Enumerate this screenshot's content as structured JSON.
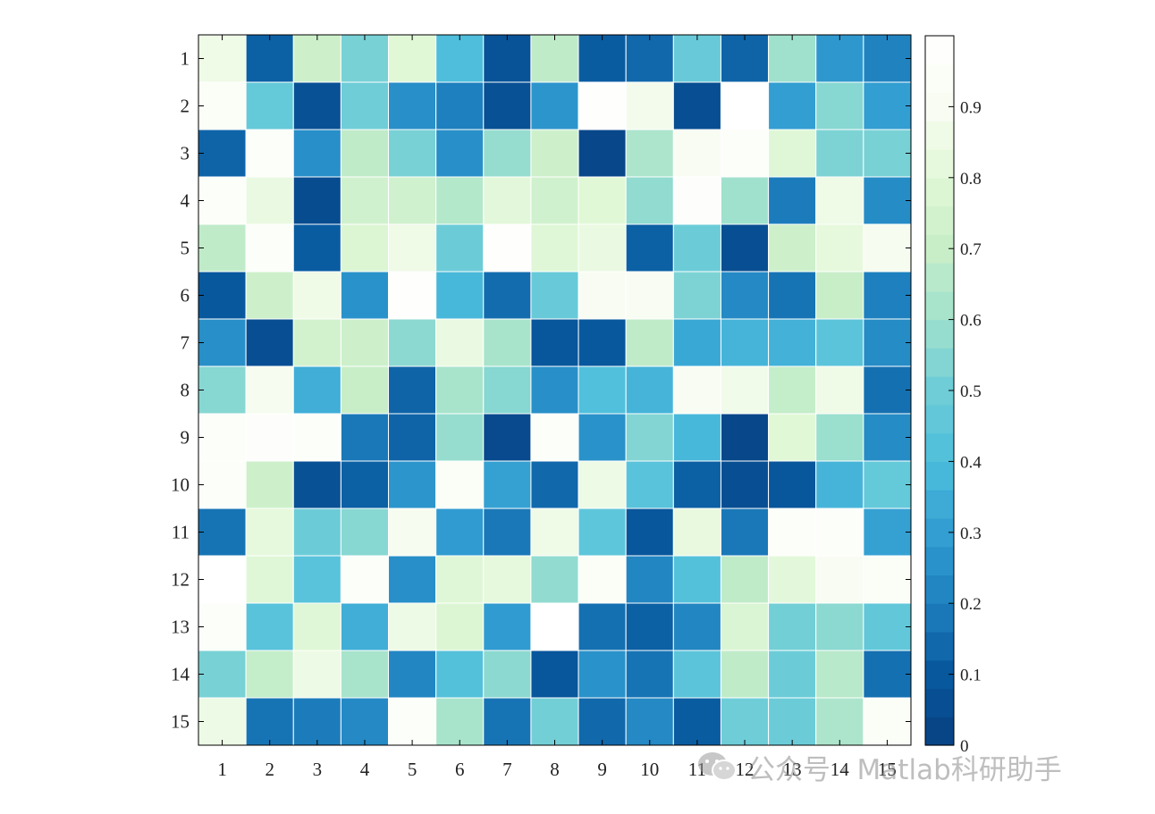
{
  "chart_data": {
    "type": "heatmap",
    "rows": [
      "1",
      "2",
      "3",
      "4",
      "5",
      "6",
      "7",
      "8",
      "9",
      "10",
      "11",
      "12",
      "13",
      "14",
      "15"
    ],
    "columns": [
      "1",
      "2",
      "3",
      "4",
      "5",
      "6",
      "7",
      "8",
      "9",
      "10",
      "11",
      "12",
      "13",
      "14",
      "15"
    ],
    "values": [
      [
        0.86,
        0.12,
        0.72,
        0.52,
        0.8,
        0.4,
        0.08,
        0.68,
        0.11,
        0.14,
        0.48,
        0.13,
        0.6,
        0.28,
        0.21
      ],
      [
        0.94,
        0.47,
        0.07,
        0.5,
        0.25,
        0.2,
        0.07,
        0.27,
        0.98,
        0.88,
        0.06,
        0.99,
        0.3,
        0.55,
        0.3
      ],
      [
        0.13,
        0.96,
        0.25,
        0.68,
        0.52,
        0.25,
        0.58,
        0.72,
        0.03,
        0.63,
        0.91,
        0.95,
        0.79,
        0.53,
        0.52
      ],
      [
        0.95,
        0.84,
        0.05,
        0.73,
        0.73,
        0.65,
        0.81,
        0.73,
        0.8,
        0.57,
        0.97,
        0.6,
        0.19,
        0.86,
        0.24
      ],
      [
        0.68,
        0.96,
        0.11,
        0.78,
        0.86,
        0.49,
        0.98,
        0.79,
        0.84,
        0.12,
        0.49,
        0.06,
        0.72,
        0.82,
        0.89
      ],
      [
        0.1,
        0.72,
        0.86,
        0.26,
        0.98,
        0.38,
        0.15,
        0.48,
        0.91,
        0.9,
        0.53,
        0.23,
        0.17,
        0.7,
        0.2
      ],
      [
        0.25,
        0.06,
        0.74,
        0.72,
        0.56,
        0.84,
        0.62,
        0.09,
        0.1,
        0.68,
        0.33,
        0.37,
        0.36,
        0.44,
        0.24
      ],
      [
        0.55,
        0.89,
        0.35,
        0.7,
        0.13,
        0.62,
        0.55,
        0.25,
        0.41,
        0.37,
        0.91,
        0.87,
        0.69,
        0.86,
        0.16
      ],
      [
        0.96,
        0.97,
        0.96,
        0.18,
        0.13,
        0.58,
        0.04,
        0.95,
        0.26,
        0.54,
        0.38,
        0.03,
        0.8,
        0.59,
        0.24
      ],
      [
        0.95,
        0.72,
        0.07,
        0.12,
        0.27,
        0.94,
        0.31,
        0.14,
        0.85,
        0.43,
        0.12,
        0.06,
        0.09,
        0.37,
        0.47
      ],
      [
        0.17,
        0.82,
        0.49,
        0.55,
        0.89,
        0.29,
        0.18,
        0.86,
        0.45,
        0.09,
        0.83,
        0.18,
        0.95,
        0.96,
        0.31
      ],
      [
        0.99,
        0.79,
        0.43,
        0.95,
        0.25,
        0.79,
        0.82,
        0.57,
        0.94,
        0.22,
        0.42,
        0.68,
        0.81,
        0.9,
        0.94
      ],
      [
        0.96,
        0.43,
        0.79,
        0.35,
        0.85,
        0.78,
        0.29,
        0.99,
        0.16,
        0.12,
        0.22,
        0.77,
        0.51,
        0.56,
        0.46
      ],
      [
        0.52,
        0.69,
        0.85,
        0.62,
        0.22,
        0.42,
        0.56,
        0.09,
        0.26,
        0.17,
        0.44,
        0.68,
        0.49,
        0.66,
        0.16
      ],
      [
        0.85,
        0.17,
        0.19,
        0.23,
        0.96,
        0.62,
        0.17,
        0.51,
        0.14,
        0.23,
        0.11,
        0.5,
        0.49,
        0.63,
        0.94
      ]
    ],
    "colorbar": {
      "range": [
        0,
        1
      ],
      "ticks": [
        "0",
        "0.1",
        "0.2",
        "0.3",
        "0.4",
        "0.5",
        "0.6",
        "0.7",
        "0.8",
        "0.9"
      ],
      "levels": 25,
      "colormap": "GnBu reversed",
      "low_color": "#084081",
      "high_color": "#ffffff"
    },
    "grid": true,
    "cell_border_color": "#ffffff",
    "title": "",
    "xlabel": "",
    "ylabel": ""
  },
  "watermark": {
    "text": "公众号 · Matlab科研助手",
    "icon": "wechat-icon"
  }
}
